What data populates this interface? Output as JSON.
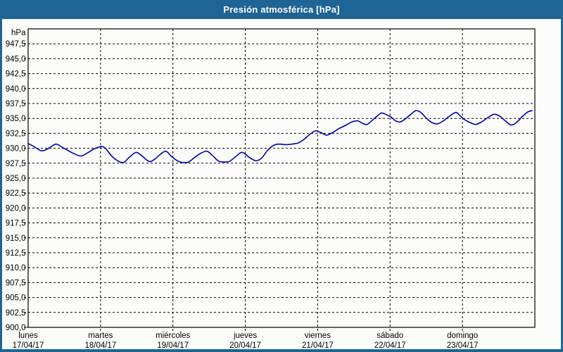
{
  "window": {
    "title": "Presión atmosférica [hPa]"
  },
  "colors": {
    "titlebar_bg": "#1e6495",
    "titlebar_text": "#ffffff",
    "chart_bg": "#fcfdfa",
    "grid": "#000000",
    "axis": "#000000",
    "tick_text": "#000000",
    "line": "#0000b0"
  },
  "chart_data": {
    "type": "line",
    "title": "Presión atmosférica [hPa]",
    "y_unit_label": "hPa",
    "ylim": [
      900,
      950
    ],
    "y_tick_step": 2.5,
    "y_tick_labels": [
      "947,5",
      "945,0",
      "942,5",
      "940,0",
      "937,5",
      "935,0",
      "932,5",
      "930,0",
      "927,5",
      "925,0",
      "922,5",
      "920,0",
      "917,5",
      "915,0",
      "912,5",
      "910,0",
      "907,5",
      "905,0",
      "902,5",
      "900,0"
    ],
    "x_range_hours": [
      0,
      168
    ],
    "x_days": [
      {
        "name": "lunes",
        "date": "17/04/17"
      },
      {
        "name": "martes",
        "date": "18/04/17"
      },
      {
        "name": "miércoles",
        "date": "19/04/17"
      },
      {
        "name": "jueves",
        "date": "20/04/17"
      },
      {
        "name": "viernes",
        "date": "21/04/17"
      },
      {
        "name": "sábado",
        "date": "22/04/17"
      },
      {
        "name": "domingo",
        "date": "23/04/17"
      }
    ],
    "grid": "dashed",
    "legend": "none",
    "series": [
      {
        "name": "Presión atmosférica",
        "color": "#0000b0",
        "points": [
          [
            0,
            930.8
          ],
          [
            1.9,
            930.3
          ],
          [
            4.2,
            929.6
          ],
          [
            6.1,
            929.8
          ],
          [
            7.7,
            930.3
          ],
          [
            9.3,
            930.7
          ],
          [
            11.2,
            930.2
          ],
          [
            13.3,
            929.6
          ],
          [
            15.2,
            929.1
          ],
          [
            17.5,
            928.7
          ],
          [
            19.6,
            929.2
          ],
          [
            21.9,
            929.9
          ],
          [
            24.5,
            930.3
          ],
          [
            26.1,
            929.7
          ],
          [
            27.5,
            928.8
          ],
          [
            29.4,
            928.0
          ],
          [
            31.5,
            927.6
          ],
          [
            33.6,
            928.5
          ],
          [
            35.7,
            929.3
          ],
          [
            37.3,
            928.9
          ],
          [
            40.1,
            927.8
          ],
          [
            42.0,
            928.2
          ],
          [
            43.9,
            929.0
          ],
          [
            45.7,
            929.5
          ],
          [
            47.6,
            928.6
          ],
          [
            49.5,
            927.9
          ],
          [
            51.3,
            927.6
          ],
          [
            53.2,
            927.7
          ],
          [
            55.3,
            928.5
          ],
          [
            57.4,
            929.2
          ],
          [
            59.3,
            929.5
          ],
          [
            61.1,
            928.8
          ],
          [
            63.0,
            927.9
          ],
          [
            64.9,
            927.7
          ],
          [
            66.7,
            927.8
          ],
          [
            68.8,
            928.6
          ],
          [
            70.7,
            929.3
          ],
          [
            72.1,
            929.0
          ],
          [
            73.5,
            928.4
          ],
          [
            75.6,
            927.9
          ],
          [
            77.5,
            928.4
          ],
          [
            79.3,
            929.6
          ],
          [
            81.4,
            930.5
          ],
          [
            83.3,
            930.7
          ],
          [
            85.4,
            930.6
          ],
          [
            87.5,
            930.7
          ],
          [
            89.6,
            930.9
          ],
          [
            91.5,
            931.5
          ],
          [
            93.3,
            932.3
          ],
          [
            95.2,
            932.9
          ],
          [
            96.8,
            932.7
          ],
          [
            98.9,
            932.2
          ],
          [
            100.8,
            932.6
          ],
          [
            103.1,
            933.3
          ],
          [
            105.5,
            933.9
          ],
          [
            107.3,
            934.4
          ],
          [
            109.2,
            934.6
          ],
          [
            110.8,
            934.2
          ],
          [
            112.4,
            934.0
          ],
          [
            114.8,
            935.0
          ],
          [
            116.7,
            935.8
          ],
          [
            117.4,
            935.9
          ],
          [
            118.5,
            935.7
          ],
          [
            120.4,
            935.2
          ],
          [
            121.8,
            934.6
          ],
          [
            123.3,
            934.4
          ],
          [
            125.0,
            934.9
          ],
          [
            126.9,
            935.7
          ],
          [
            128.6,
            936.3
          ],
          [
            130.2,
            936.0
          ],
          [
            132.1,
            935.0
          ],
          [
            133.9,
            934.3
          ],
          [
            135.8,
            934.1
          ],
          [
            137.7,
            934.6
          ],
          [
            140.0,
            935.5
          ],
          [
            141.9,
            936.0
          ],
          [
            143.3,
            935.4
          ],
          [
            144.7,
            934.8
          ],
          [
            146.5,
            934.3
          ],
          [
            148.4,
            934.0
          ],
          [
            150.3,
            934.4
          ],
          [
            152.6,
            935.2
          ],
          [
            154.5,
            935.7
          ],
          [
            156.3,
            935.4
          ],
          [
            158.2,
            934.6
          ],
          [
            160.1,
            933.9
          ],
          [
            161.9,
            934.3
          ],
          [
            163.8,
            935.3
          ],
          [
            165.7,
            936.1
          ],
          [
            167.1,
            936.3
          ]
        ]
      }
    ]
  }
}
